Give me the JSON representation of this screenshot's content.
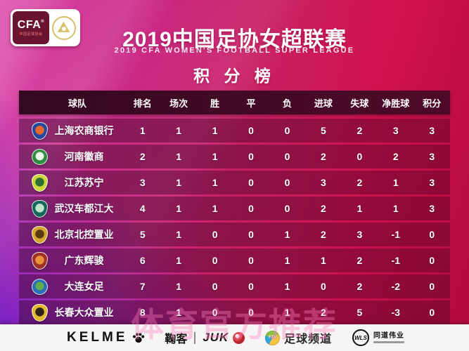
{
  "header": {
    "cfa_badge": {
      "text": "CFA",
      "reg": "®",
      "subtext": "中国足球协会",
      "emblem_icon": "gold-football-emblem"
    },
    "title": "2019中国足协女超联赛",
    "subtitle": "2019 CFA WOMEN'S FOOTBALL SUPER LEAGUE",
    "section_title": "积 分 榜"
  },
  "chart_data": {
    "type": "table",
    "title": "积分榜 (2019中国足协女超联赛)",
    "columns": [
      "球队",
      "排名",
      "场次",
      "胜",
      "平",
      "负",
      "进球",
      "失球",
      "净胜球",
      "积分"
    ],
    "rows": [
      {
        "team": "上海农商银行",
        "stats": [
          1,
          1,
          1,
          0,
          0,
          5,
          2,
          3,
          3
        ],
        "badge": {
          "shape": "shield",
          "outer": "#2448a0",
          "inner": "#e8682a"
        }
      },
      {
        "team": "河南徽商",
        "stats": [
          2,
          1,
          1,
          0,
          0,
          2,
          0,
          2,
          3
        ],
        "badge": {
          "shape": "circle",
          "outer": "#2d8f3f",
          "inner": "#eef7ea"
        }
      },
      {
        "team": "江苏苏宁",
        "stats": [
          3,
          1,
          1,
          0,
          0,
          3,
          2,
          1,
          3
        ],
        "badge": {
          "shape": "shield",
          "outer": "#ccd83a",
          "inner": "#2c6e35"
        }
      },
      {
        "team": "武汉车都江大",
        "stats": [
          4,
          1,
          1,
          0,
          0,
          2,
          1,
          1,
          3
        ],
        "badge": {
          "shape": "shield",
          "outer": "#14675a",
          "inner": "#bfe3c9"
        }
      },
      {
        "team": "北京北控置业",
        "stats": [
          5,
          1,
          0,
          0,
          1,
          2,
          3,
          -1,
          0
        ],
        "badge": {
          "shape": "shield",
          "outer": "#d4a62c",
          "inner": "#5a3a14"
        }
      },
      {
        "team": "广东辉骏",
        "stats": [
          6,
          1,
          0,
          0,
          1,
          1,
          2,
          -1,
          0
        ],
        "badge": {
          "shape": "shield",
          "outer": "#a03028",
          "inner": "#e8943a"
        }
      },
      {
        "team": "大连女足",
        "stats": [
          7,
          1,
          0,
          0,
          1,
          0,
          2,
          -2,
          0
        ],
        "badge": {
          "shape": "circle",
          "outer": "#2a6fb8",
          "inner": "#5fae4e"
        }
      },
      {
        "team": "长春大众置业",
        "stats": [
          8,
          1,
          0,
          0,
          1,
          2,
          5,
          -3,
          0
        ],
        "badge": {
          "shape": "shield",
          "outer": "#e3b92e",
          "inner": "#2a241c"
        }
      }
    ]
  },
  "watermark": "体育官方推荐",
  "footer": {
    "sponsors": [
      {
        "name": "kelme",
        "label": "KELME",
        "icon": "paw-icon"
      },
      {
        "name": "juke",
        "label_cn": "鞠客",
        "label_en": "JUK",
        "icon": "red-ball-emblem-icon"
      },
      {
        "name": "football-channel",
        "icon_text": "FTV",
        "label": "足球频道",
        "icon": "ftv-ball-icon"
      },
      {
        "name": "wls-sports",
        "label": "WLS",
        "label_cn": "同道伟业",
        "icon": "wls-circle-icon"
      }
    ]
  },
  "colors": {
    "background_left": "#dd4cae",
    "background_right": "#c30d43",
    "background_corner_purple": "#681ccd",
    "table_header_bar": "#3d0822",
    "row_overlay": "rgba(47,2,34,0.42)",
    "text": "#ffffff",
    "footer_background": "#f6f4f5",
    "watermark": "#ff82be"
  }
}
